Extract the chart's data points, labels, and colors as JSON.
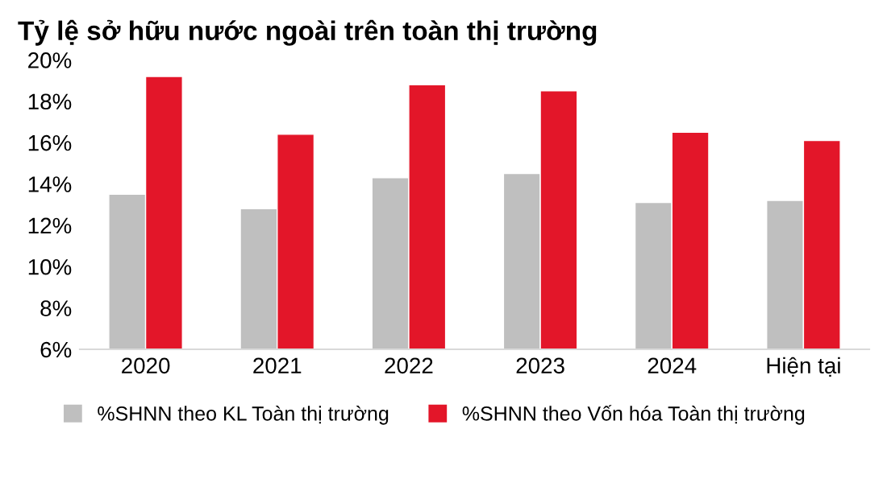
{
  "chart_data": {
    "type": "bar",
    "title": "Tỷ lệ sở hữu nước ngoài trên toàn thị trường",
    "categories": [
      "2020",
      "2021",
      "2022",
      "2023",
      "2024",
      "Hiện tại"
    ],
    "series": [
      {
        "name": "%SHNN theo KL Toàn thị trường",
        "color": "#bfbfbf",
        "values": [
          13.5,
          12.8,
          14.3,
          14.5,
          13.1,
          13.2
        ]
      },
      {
        "name": "%SHNN theo Vốn hóa Toàn thị trường",
        "color": "#e31629",
        "values": [
          19.2,
          16.4,
          18.8,
          18.5,
          16.5,
          16.1
        ]
      }
    ],
    "ylim": [
      6,
      20
    ],
    "yticks": [
      {
        "value": 6,
        "label": "6%"
      },
      {
        "value": 8,
        "label": "8%"
      },
      {
        "value": 10,
        "label": "10%"
      },
      {
        "value": 12,
        "label": "12%"
      },
      {
        "value": 14,
        "label": "14%"
      },
      {
        "value": 16,
        "label": "16%"
      },
      {
        "value": 18,
        "label": "18%"
      },
      {
        "value": 20,
        "label": "20%"
      }
    ],
    "grid": false,
    "legend": "bottom"
  }
}
